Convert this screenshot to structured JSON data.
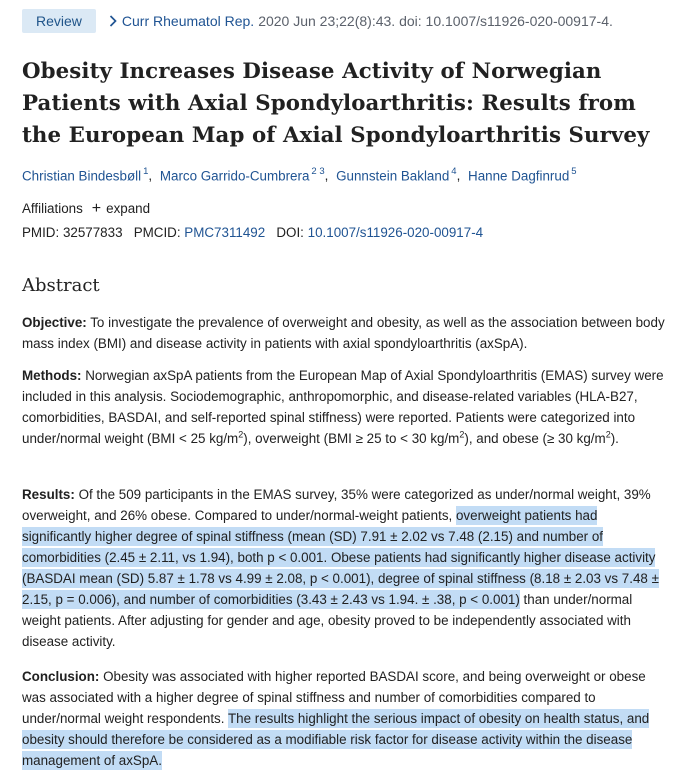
{
  "header": {
    "type_badge": "Review",
    "journal": "Curr Rheumatol Rep.",
    "citation": "2020 Jun 23;22(8):43. doi: 10.1007/s11926-020-00917-4."
  },
  "title": "Obesity Increases Disease Activity of Norwegian Patients with Axial Spondyloarthritis: Results from the European Map of Axial Spondyloarthritis Survey",
  "authors": [
    {
      "name": "Christian Bindesbøll",
      "aff": "1"
    },
    {
      "name": "Marco Garrido-Cumbrera",
      "aff": "2 3"
    },
    {
      "name": "Gunnstein Bakland",
      "aff": "4"
    },
    {
      "name": "Hanne Dagfinrud",
      "aff": "5"
    }
  ],
  "affiliations": {
    "label": "Affiliations",
    "plus": "+",
    "expand_label": "expand"
  },
  "identifiers": {
    "pmid_label": "PMID:",
    "pmid": "32577833",
    "pmcid_label": "PMCID:",
    "pmcid": "PMC7311492",
    "doi_label": "DOI:",
    "doi": "10.1007/s11926-020-00917-4"
  },
  "abstract": {
    "heading": "Abstract",
    "objective_label": "Objective:",
    "objective": "To investigate the prevalence of overweight and obesity, as well as the association between body mass index (BMI) and disease activity in patients with axial spondyloarthritis (axSpA).",
    "methods_label": "Methods:",
    "methods_1": "Norwegian axSpA patients from the European Map of Axial Spondyloarthritis (EMAS) survey were included in this analysis. Sociodemographic, anthropomorphic, and disease-related variables (HLA-B27, comorbidities, BASDAI, and self-reported spinal stiffness) were reported. Patients were categorized into under/normal weight (BMI < 25 kg/m",
    "methods_2": "), overweight (BMI ≥ 25 to < 30 kg/m",
    "methods_3": "), and obese (≥ 30 kg/m",
    "methods_4": ").",
    "sup_2": "2",
    "results_label": "Results:",
    "results_1": "Of the 509 participants in the EMAS survey, 35% were categorized as under/normal weight, 39% overweight, and 26% obese. Compared to under/normal-weight patients,",
    "results_hl": "overweight patients had significantly higher degree of spinal stiffness (mean (SD) 7.91 ± 2.02 vs 7.48 (2.15) and number of comorbidities (2.45 ± 2.11, vs 1.94), both p < 0.001. Obese patients had significantly higher disease activity (BASDAI mean (SD) 5.87 ± 1.78 vs 4.99 ± 2.08, p < 0.001), degree of spinal stiffness (8.18 ± 2.03 vs 7.48 ± 2.15, p = 0.006), and number of comorbidities (3.43 ± 2.43 vs 1.94. ± .38, p < 0.001)",
    "results_2": "than under/normal weight patients. After adjusting for gender and age, obesity proved to be independently associated with disease activity.",
    "conclusion_label": "Conclusion:",
    "conclusion_1": "Obesity was associated with higher reported BASDAI score, and being overweight or obese was associated with a higher degree of spinal stiffness and number of comorbidities compared to under/normal weight respondents.",
    "conclusion_hl": "The results highlight the serious impact of obesity on health status, and obesity should therefore be considered as a modifiable risk factor for disease activity within the disease management of axSpA."
  },
  "colors": {
    "link": "#205493",
    "badge_bg": "#dbe9f5",
    "highlight": "#c2dcf5",
    "text": "#212121"
  }
}
